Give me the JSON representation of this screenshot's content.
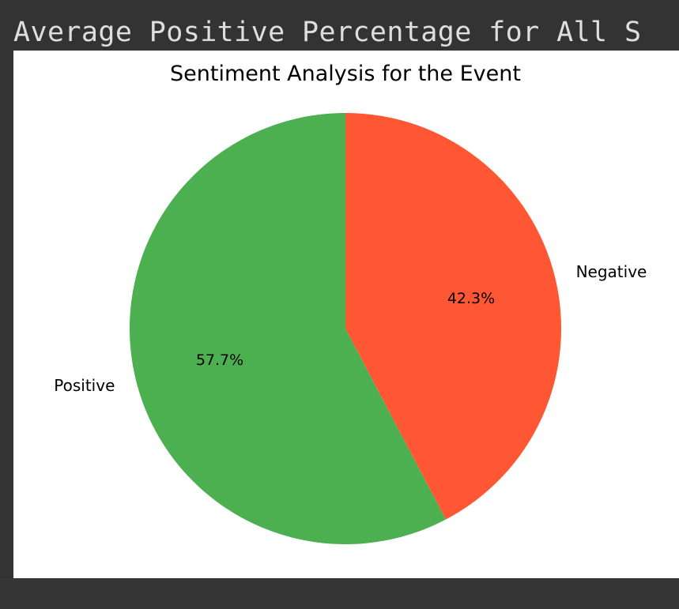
{
  "output_header": {
    "text": "Average Positive Percentage for All S"
  },
  "chart_data": {
    "type": "pie",
    "title": "Sentiment Analysis for the Event",
    "slices": [
      {
        "label": "Negative",
        "value": 42.3,
        "pct_label": "42.3%",
        "color": "#ff5733"
      },
      {
        "label": "Positive",
        "value": 57.7,
        "pct_label": "57.7%",
        "color": "#4caf50"
      }
    ],
    "start_angle_deg": 90,
    "direction": "clockwise",
    "legend": "none"
  }
}
